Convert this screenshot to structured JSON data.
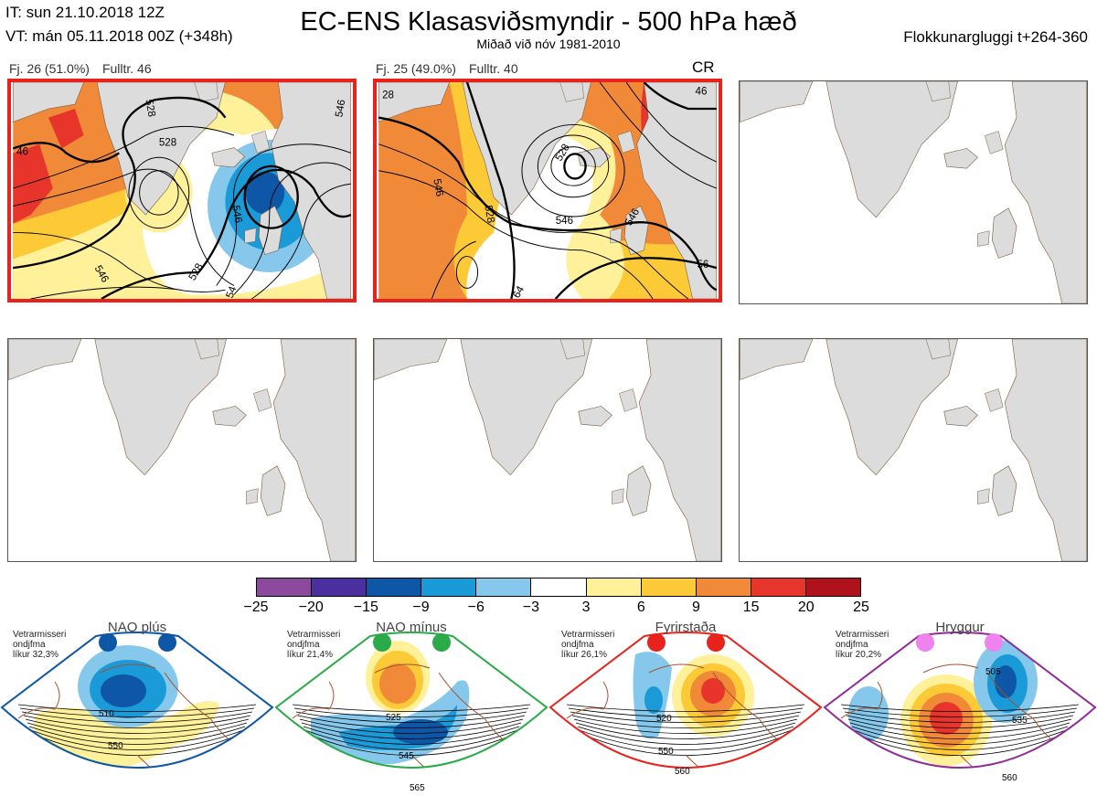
{
  "header": {
    "it": "IT: sun 21.10.2018 12Z",
    "vt": "VT: mán 05.11.2018 00Z  (+348h)",
    "title": "EC-ENS Klasasviðsmyndir - 500 hPa hæð",
    "subtitle": "Miðað við nóv 1981-2010",
    "window": "Flokkunargluggi t+264-360"
  },
  "panels": [
    {
      "label": "Fj. 26 (51.0%)",
      "count": "Fulltr. 46",
      "selected": true,
      "contours": [
        "528",
        "528",
        "546",
        "546",
        "528",
        "546",
        "46",
        "54"
      ]
    },
    {
      "label": "Fj. 25 (49.0%)",
      "count": "Fulltr. 40",
      "selected": true,
      "tag": "CR",
      "contours": [
        "28",
        "546",
        "528",
        "528",
        "546",
        "546",
        "64",
        "56",
        "46"
      ]
    },
    {
      "selected": false
    },
    {
      "selected": false
    },
    {
      "selected": false
    },
    {
      "selected": false
    }
  ],
  "colorbar": {
    "colors": [
      "#8b4a9c",
      "#4b2f9e",
      "#0e57a6",
      "#1a9ad6",
      "#86c8ec",
      "#ffffff",
      "#fff09a",
      "#fcc937",
      "#f08a38",
      "#e8352b",
      "#b0121c"
    ],
    "ticks": [
      "−25",
      "−20",
      "−15",
      "−9",
      "−6",
      "−3",
      "3",
      "6",
      "9",
      "15",
      "20",
      "25"
    ]
  },
  "regimes": [
    {
      "name": "NAO plús",
      "note": [
        "Vetrarmisseri",
        "ondjfma",
        "líkur 32,3%"
      ],
      "color": "#0e57a6",
      "labels": [
        "510",
        "550"
      ]
    },
    {
      "name": "NAO mínus",
      "note": [
        "Vetrarmisseri",
        "ondjfma",
        "líkur 21,4%"
      ],
      "color": "#2aaa48",
      "labels": [
        "525",
        "545",
        "565"
      ]
    },
    {
      "name": "Fyrirstaða",
      "note": [
        "Vetrarmisseri",
        "ondjfma",
        "líkur 26,1%"
      ],
      "color": "#e8231d",
      "labels": [
        "520",
        "550",
        "560"
      ]
    },
    {
      "name": "Hryggur",
      "note": [
        "Vetrarmisseri",
        "ondjfma",
        "líkur 20,2%"
      ],
      "color": "#8f2d96",
      "labels": [
        "505",
        "535",
        "560"
      ]
    }
  ]
}
